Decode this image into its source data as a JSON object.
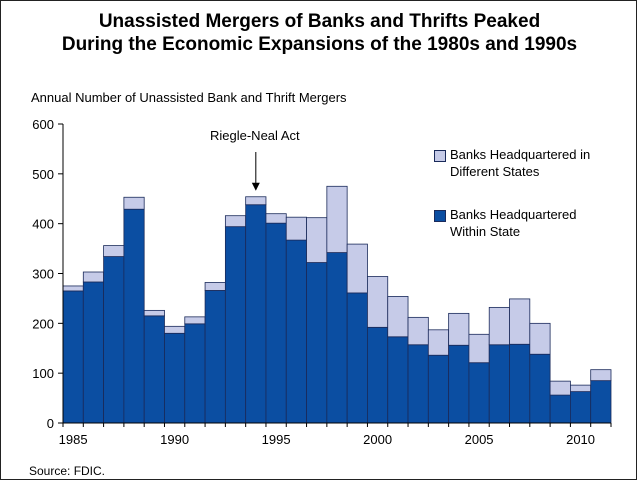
{
  "chart_data": {
    "type": "bar",
    "stacked": true,
    "title_line1": "Unassisted Mergers of Banks and Thrifts Peaked",
    "title_line2": "During the Economic Expansions of the 1980s and 1990s",
    "ylabel": "Annual Number of Unassisted Bank and Thrift Mergers",
    "source": "Source: FDIC.",
    "annotation": {
      "text": "Riegle-Neal Act",
      "year": 1994
    },
    "ylim": [
      0,
      600
    ],
    "y_ticks": [
      "0",
      "100",
      "200",
      "300",
      "400",
      "500",
      "600"
    ],
    "x_ticks": [
      "1985",
      "1990",
      "1995",
      "2000",
      "2005",
      "2010"
    ],
    "legend_position": "top-right",
    "categories": [
      1985,
      1986,
      1987,
      1988,
      1989,
      1990,
      1991,
      1992,
      1993,
      1994,
      1995,
      1996,
      1997,
      1998,
      1999,
      2000,
      2001,
      2002,
      2003,
      2004,
      2005,
      2006,
      2007,
      2008,
      2009,
      2010,
      2011
    ],
    "series": [
      {
        "name": "Banks Headquartered Within State",
        "color": "#0b4ea2",
        "values": [
          265,
          283,
          334,
          429,
          215,
          180,
          199,
          266,
          394,
          438,
          401,
          367,
          322,
          342,
          261,
          192,
          173,
          157,
          136,
          156,
          121,
          157,
          158,
          138,
          56,
          63,
          85
        ]
      },
      {
        "name": "Banks Headquartered in Different States",
        "color": "#c6cbe8",
        "values": [
          10,
          20,
          22,
          24,
          11,
          14,
          14,
          16,
          22,
          16,
          19,
          46,
          90,
          133,
          98,
          102,
          81,
          55,
          51,
          64,
          57,
          75,
          91,
          62,
          28,
          13,
          22
        ]
      }
    ],
    "legend": [
      {
        "line1": "Banks Headquartered in",
        "line2": "Different States"
      },
      {
        "line1": "Banks Headquartered",
        "line2": "Within State"
      }
    ]
  }
}
